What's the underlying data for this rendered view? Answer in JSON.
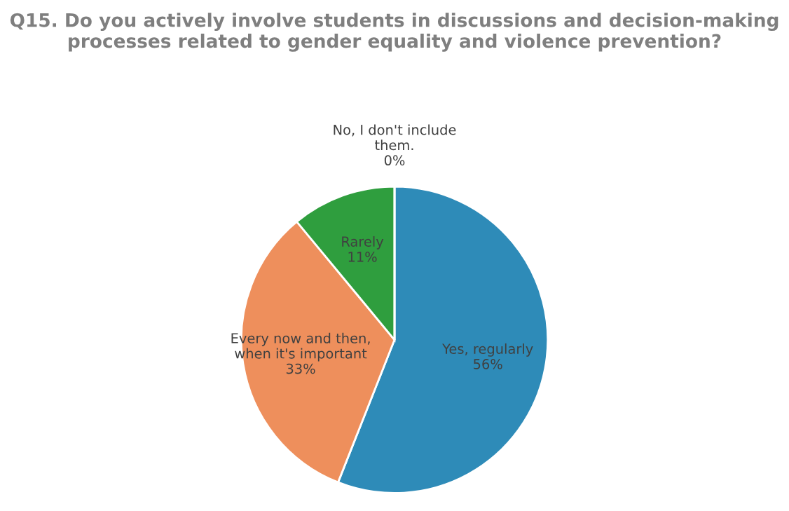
{
  "chart_data": {
    "type": "pie",
    "title": "Q15. Do you actively involve students in discussions and decision-making processes related to gender equality and violence prevention?",
    "categories": [
      "Yes, regularly",
      "Every now and then, when it's important",
      "Rarely",
      "No, I don't include them."
    ],
    "values": [
      56,
      33,
      11,
      0
    ],
    "colors": [
      "#2e8bb8",
      "#ee8f5c",
      "#2f9e3e",
      "#9e9e9e"
    ],
    "value_labels": [
      "56%",
      "33%",
      "11%",
      "0%"
    ]
  }
}
